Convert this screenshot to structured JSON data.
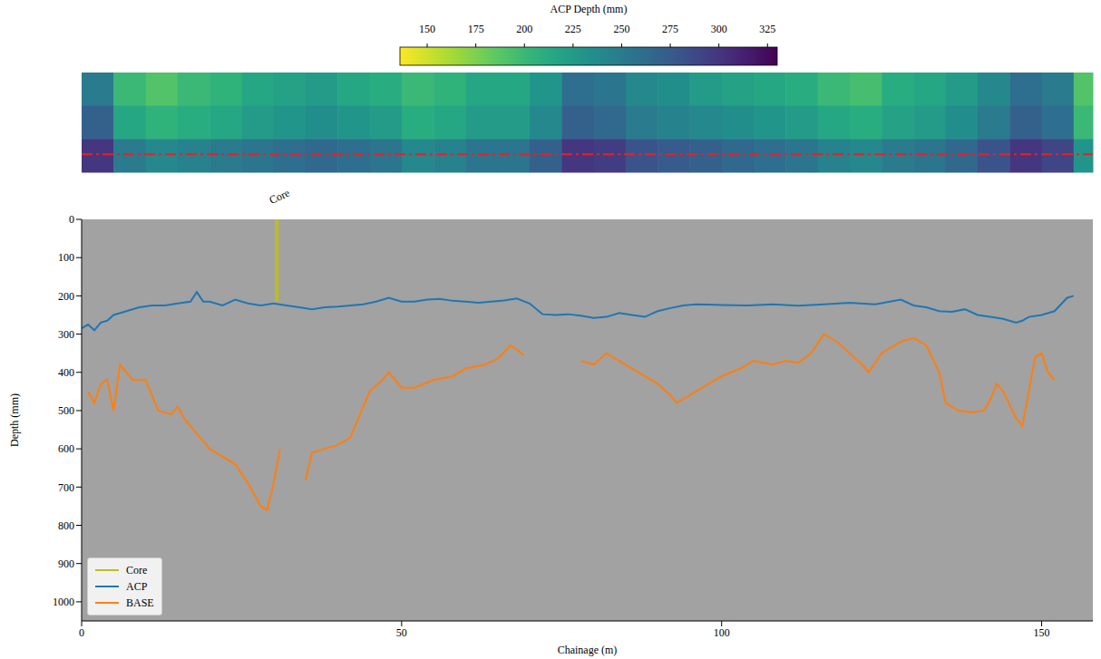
{
  "chart_data": {
    "type": "line",
    "xlabel": "Chainage (m)",
    "ylabel": "Depth (mm)",
    "xlim": [
      0,
      158
    ],
    "xticks": [
      0,
      50,
      100,
      150
    ],
    "ylim": [
      0,
      1050
    ],
    "yticks": [
      0,
      100,
      200,
      300,
      400,
      500,
      600,
      700,
      800,
      900,
      1000
    ],
    "legend": "lower left",
    "series": [
      {
        "name": "Core",
        "color": "#bcbd22",
        "x": [
          30.5,
          30.5
        ],
        "values": [
          0,
          215
        ]
      },
      {
        "name": "ACP",
        "color": "#1f77b4",
        "x": [
          0,
          1,
          2,
          3,
          4,
          5,
          7,
          9,
          11,
          13,
          15,
          17,
          18,
          19,
          20,
          22,
          24,
          26,
          28,
          30,
          32,
          34,
          36,
          38,
          40,
          42,
          44,
          46,
          48,
          50,
          52,
          54,
          56,
          58,
          60,
          62,
          64,
          66,
          68,
          70,
          72,
          74,
          76,
          78,
          80,
          82,
          84,
          86,
          88,
          90,
          92,
          94,
          96,
          98,
          100,
          104,
          108,
          112,
          116,
          120,
          124,
          128,
          130,
          132,
          134,
          136,
          138,
          140,
          142,
          144,
          146,
          147,
          148,
          150,
          152,
          154,
          155
        ],
        "values": [
          285,
          275,
          290,
          270,
          265,
          250,
          240,
          230,
          225,
          225,
          220,
          215,
          190,
          215,
          215,
          225,
          210,
          220,
          225,
          220,
          225,
          230,
          235,
          230,
          228,
          225,
          222,
          215,
          205,
          215,
          215,
          210,
          208,
          213,
          215,
          218,
          215,
          212,
          207,
          220,
          248,
          250,
          248,
          252,
          258,
          255,
          245,
          250,
          255,
          240,
          232,
          225,
          222,
          223,
          224,
          225,
          222,
          226,
          222,
          218,
          222,
          210,
          225,
          230,
          240,
          242,
          235,
          250,
          255,
          260,
          270,
          265,
          255,
          250,
          240,
          205,
          200
        ]
      },
      {
        "name": "BASE",
        "color": "#ff7f0e",
        "x": [
          1,
          2,
          3,
          4,
          5,
          6,
          7,
          8,
          10,
          12,
          14,
          15,
          16,
          18,
          20,
          22,
          24,
          26,
          28,
          29,
          30,
          31,
          33,
          35,
          36,
          38,
          40,
          42,
          43,
          45,
          47,
          48,
          50,
          52,
          55,
          58,
          60,
          63,
          65,
          67,
          68,
          69,
          73,
          78,
          80,
          82,
          84,
          86,
          88,
          90,
          92,
          93,
          95,
          97,
          100,
          103,
          105,
          108,
          110,
          112,
          114,
          116,
          118,
          120,
          122,
          123,
          125,
          128,
          130,
          132,
          134,
          135,
          137,
          139,
          141,
          142,
          143,
          144,
          146,
          147,
          148,
          149,
          150,
          151,
          152
        ],
        "values": [
          450,
          480,
          430,
          420,
          500,
          380,
          400,
          420,
          420,
          500,
          510,
          490,
          520,
          560,
          600,
          620,
          640,
          690,
          750,
          760,
          690,
          600,
          null,
          680,
          610,
          600,
          590,
          570,
          530,
          450,
          420,
          400,
          440,
          440,
          420,
          410,
          390,
          380,
          365,
          330,
          340,
          355,
          null,
          370,
          380,
          350,
          370,
          390,
          410,
          430,
          460,
          480,
          460,
          440,
          410,
          390,
          370,
          380,
          370,
          375,
          350,
          300,
          320,
          350,
          380,
          400,
          350,
          320,
          310,
          330,
          400,
          480,
          500,
          505,
          500,
          470,
          430,
          450,
          520,
          540,
          450,
          360,
          350,
          400,
          420
        ]
      }
    ],
    "heatmap": {
      "x_edges": [
        0,
        5,
        10,
        15,
        20,
        25,
        30,
        35,
        40,
        45,
        50,
        55,
        60,
        65,
        70,
        75,
        80,
        85,
        90,
        95,
        100,
        105,
        110,
        115,
        120,
        125,
        130,
        135,
        140,
        145,
        150,
        155,
        158
      ],
      "values": [
        [
          250,
          200,
          190,
          200,
          205,
          215,
          220,
          225,
          215,
          210,
          200,
          205,
          215,
          215,
          230,
          260,
          255,
          240,
          235,
          225,
          220,
          215,
          210,
          200,
          195,
          210,
          215,
          225,
          240,
          260,
          250,
          190
        ],
        [
          270,
          215,
          205,
          210,
          215,
          225,
          230,
          235,
          230,
          225,
          210,
          215,
          225,
          225,
          240,
          270,
          265,
          250,
          245,
          240,
          235,
          230,
          225,
          215,
          210,
          220,
          225,
          235,
          250,
          270,
          260,
          200
        ],
        [
          300,
          250,
          240,
          245,
          250,
          255,
          260,
          265,
          260,
          255,
          240,
          245,
          255,
          255,
          270,
          300,
          295,
          280,
          275,
          270,
          265,
          260,
          255,
          245,
          240,
          250,
          255,
          265,
          280,
          300,
          290,
          230
        ]
      ],
      "colorbar": {
        "label": "ACP Depth (mm)",
        "range": [
          136,
          330
        ],
        "ticks": [
          150,
          175,
          200,
          225,
          250,
          275,
          300,
          325
        ]
      }
    }
  }
}
